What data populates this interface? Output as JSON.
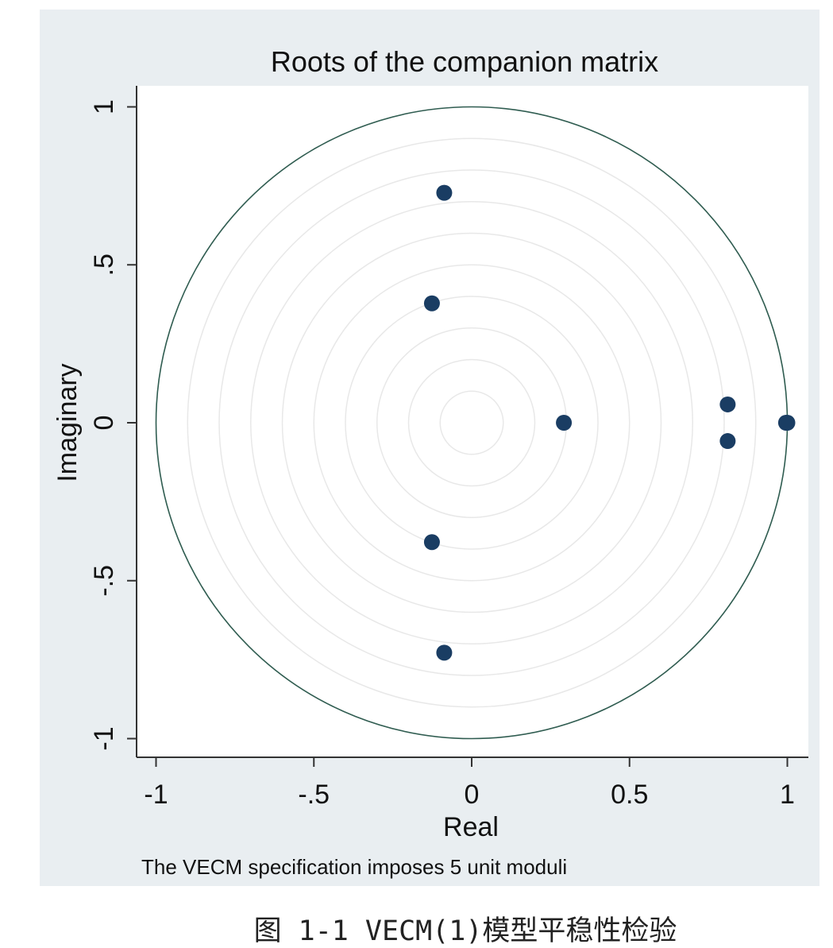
{
  "chart_data": {
    "type": "scatter",
    "title": "Roots of the companion matrix",
    "xlabel": "Real",
    "ylabel": "Imaginary",
    "xlim": [
      -1,
      1
    ],
    "ylim": [
      -1,
      1
    ],
    "x_ticks": [
      {
        "value": -1,
        "label": "-1"
      },
      {
        "value": -0.5,
        "label": "-.5"
      },
      {
        "value": 0,
        "label": "0"
      },
      {
        "value": 0.5,
        "label": "0.5"
      },
      {
        "value": 1,
        "label": "1"
      }
    ],
    "y_ticks": [
      {
        "value": -1,
        "label": "-1"
      },
      {
        "value": -0.5,
        "label": "-.5"
      },
      {
        "value": 0,
        "label": "0"
      },
      {
        "value": 0.5,
        "label": ".5"
      },
      {
        "value": 1,
        "label": "1"
      }
    ],
    "unit_circle": true,
    "grid_circles_radii": [
      0.1,
      0.2,
      0.3,
      0.4,
      0.5,
      0.6,
      0.7,
      0.8,
      0.9
    ],
    "points": [
      {
        "x": -0.087,
        "y": 0.728
      },
      {
        "x": -0.126,
        "y": 0.378
      },
      {
        "x": 0.292,
        "y": 0.0
      },
      {
        "x": 0.811,
        "y": 0.058
      },
      {
        "x": 0.811,
        "y": -0.058
      },
      {
        "x": 0.996,
        "y": 0.0
      },
      {
        "x": 1.0,
        "y": 0.0
      },
      {
        "x": -0.126,
        "y": -0.378
      },
      {
        "x": -0.087,
        "y": -0.728
      }
    ],
    "note": "The VECM specification imposes 5 unit moduli",
    "colors": {
      "outer_background": "#e9eef1",
      "plot_background": "#ffffff",
      "marker": "#1a3d63",
      "unit_circle": "#2f5c50",
      "grid_circle": "#e8e8e8",
      "axis": "#333333"
    }
  },
  "caption": "图 1-1 VECM(1)模型平稳性检验"
}
